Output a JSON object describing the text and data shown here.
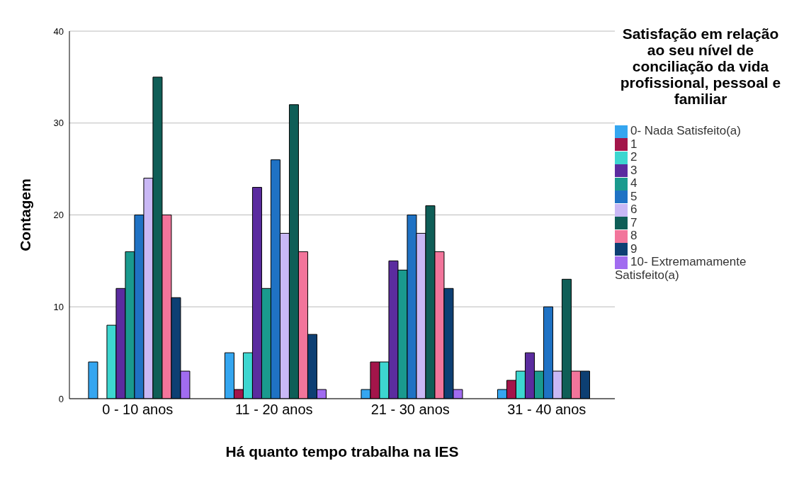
{
  "chart_data": {
    "type": "bar",
    "xlabel": "Há quanto tempo trabalha na IES",
    "ylabel": "Contagem",
    "legend_title": "Satisfação em relação ao seu nível de conciliação da vida profissional, pessoal e familiar",
    "categories": [
      "0 - 10 anos",
      "11 - 20 anos",
      "21 - 30 anos",
      "31 - 40 anos"
    ],
    "series": [
      {
        "name": "0- Nada Satisfeito(a)",
        "color": "#35a6f0",
        "values": [
          4,
          5,
          1,
          1
        ]
      },
      {
        "name": "1",
        "color": "#a3154a",
        "values": [
          0,
          1,
          4,
          2
        ]
      },
      {
        "name": "2",
        "color": "#3dd6d0",
        "values": [
          8,
          5,
          4,
          3
        ]
      },
      {
        "name": "3",
        "color": "#5b2c9f",
        "values": [
          12,
          23,
          15,
          5
        ]
      },
      {
        "name": "4",
        "color": "#1a9a8e",
        "values": [
          16,
          12,
          14,
          3
        ]
      },
      {
        "name": "5",
        "color": "#1f72c4",
        "values": [
          20,
          26,
          20,
          10
        ]
      },
      {
        "name": "6",
        "color": "#c9b8f5",
        "values": [
          24,
          18,
          18,
          3
        ]
      },
      {
        "name": "7",
        "color": "#0f5e57",
        "values": [
          35,
          32,
          21,
          13
        ]
      },
      {
        "name": "8",
        "color": "#f2759b",
        "values": [
          20,
          16,
          16,
          3
        ]
      },
      {
        "name": "9",
        "color": "#0d3f73",
        "values": [
          11,
          7,
          12,
          3
        ]
      },
      {
        "name": "10- Extremamamente Satisfeito(a)",
        "color": "#a16cf0",
        "values": [
          3,
          1,
          1,
          0
        ]
      }
    ],
    "ylim": [
      0,
      40
    ],
    "yticks": [
      0,
      10,
      20,
      30,
      40
    ],
    "grid": "y",
    "legend": "right"
  }
}
